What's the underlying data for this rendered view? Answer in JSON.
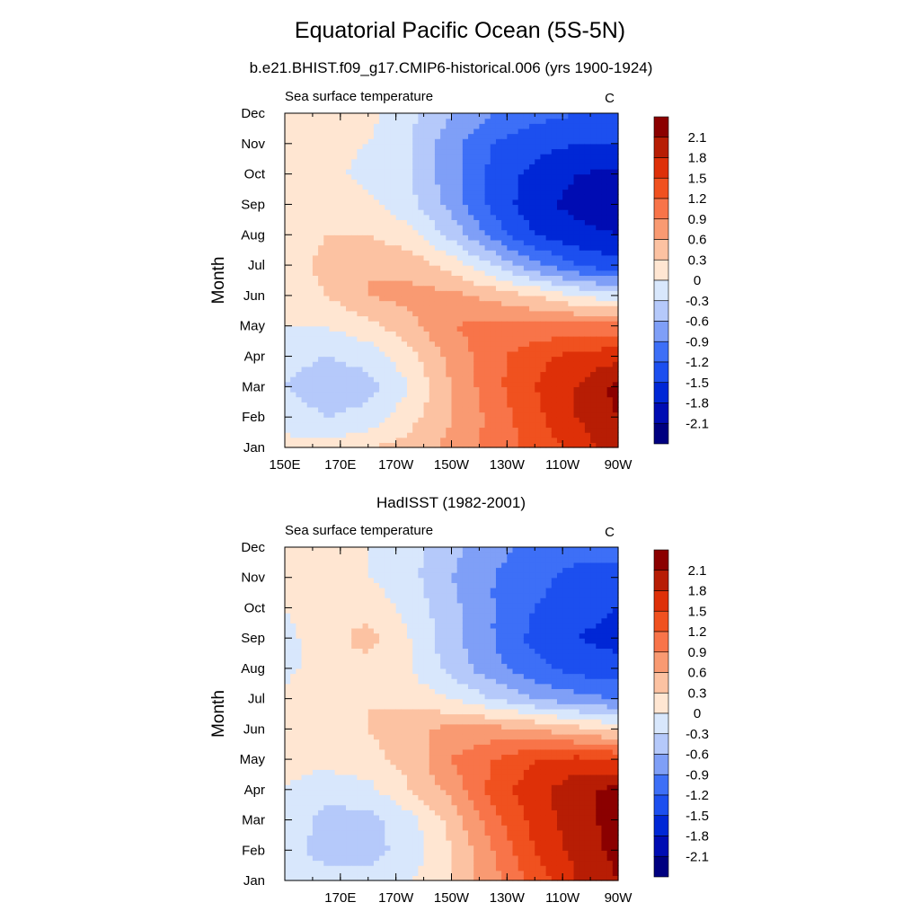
{
  "title": "Equatorial Pacific Ocean (5S-5N)",
  "chart_data": [
    {
      "type": "heatmap",
      "subtitle": "b.e21.BHIST.f09_g17.CMIP6-historical.006 (yrs 1900-1924)",
      "left_label": "Sea surface temperature",
      "units": "C",
      "ylabel": "Month",
      "xlabel": "",
      "x_ticks": [
        "150E",
        "170E",
        "170W",
        "150W",
        "130W",
        "110W",
        "90W"
      ],
      "x_tick_lon": [
        150,
        170,
        190,
        210,
        230,
        250,
        270
      ],
      "xlim": [
        150,
        270
      ],
      "y_ticks": [
        "Jan",
        "Feb",
        "Mar",
        "Apr",
        "May",
        "Jun",
        "Jul",
        "Aug",
        "Sep",
        "Oct",
        "Nov",
        "Dec"
      ],
      "colorbar_labels": [
        "2.1",
        "1.8",
        "1.5",
        "1.2",
        "0.9",
        "0.6",
        "0.3",
        "0",
        "-0.3",
        "-0.6",
        "-0.9",
        "-1.2",
        "-1.5",
        "-1.8",
        "-2.1"
      ],
      "contour_levels": [
        -2.1,
        -1.8,
        -1.5,
        -1.2,
        -0.9,
        -0.6,
        -0.3,
        0,
        0.3,
        0.6,
        0.9,
        1.2,
        1.5,
        1.8,
        2.1
      ],
      "lon": [
        150,
        165,
        180,
        195,
        210,
        225,
        240,
        255,
        270
      ],
      "values": [
        [
          0.1,
          0.1,
          0.3,
          0.4,
          0.7,
          1.0,
          1.3,
          1.6,
          2.0
        ],
        [
          -0.1,
          -0.3,
          -0.2,
          0.2,
          0.6,
          1.0,
          1.4,
          1.8,
          2.1
        ],
        [
          -0.3,
          -0.5,
          -0.4,
          0.0,
          0.6,
          1.1,
          1.5,
          1.8,
          2.2
        ],
        [
          -0.2,
          -0.3,
          -0.2,
          0.2,
          0.7,
          1.1,
          1.4,
          1.6,
          1.7
        ],
        [
          0.0,
          0.0,
          0.2,
          0.5,
          0.9,
          1.0,
          1.0,
          1.0,
          1.0
        ],
        [
          0.1,
          0.3,
          0.6,
          0.7,
          0.7,
          0.5,
          0.3,
          0.0,
          -0.2
        ],
        [
          0.1,
          0.4,
          0.6,
          0.5,
          0.2,
          -0.3,
          -0.8,
          -1.2,
          -1.4
        ],
        [
          0.1,
          0.3,
          0.3,
          0.1,
          -0.4,
          -1.0,
          -1.5,
          -1.7,
          -1.8
        ],
        [
          0.0,
          0.2,
          0.1,
          -0.2,
          -0.7,
          -1.3,
          -1.7,
          -1.9,
          -2.0
        ],
        [
          0.1,
          0.1,
          -0.1,
          -0.3,
          -0.8,
          -1.3,
          -1.6,
          -1.8,
          -1.9
        ],
        [
          0.1,
          0.1,
          0.0,
          -0.3,
          -0.8,
          -1.2,
          -1.4,
          -1.5,
          -1.5
        ],
        [
          0.1,
          0.1,
          0.1,
          -0.2,
          -0.6,
          -0.9,
          -1.1,
          -1.2,
          -1.2
        ]
      ]
    },
    {
      "type": "heatmap",
      "subtitle": "HadISST (1982-2001)",
      "left_label": "Sea surface temperature",
      "units": "C",
      "ylabel": "Month",
      "xlabel": "",
      "x_ticks": [
        "170E",
        "170W",
        "150W",
        "130W",
        "110W",
        "90W"
      ],
      "x_tick_lon": [
        170,
        190,
        210,
        230,
        250,
        270
      ],
      "xlim": [
        150,
        270
      ],
      "y_ticks": [
        "Jan",
        "Feb",
        "Mar",
        "Apr",
        "May",
        "Jun",
        "Jul",
        "Aug",
        "Sep",
        "Oct",
        "Nov",
        "Dec"
      ],
      "colorbar_labels": [
        "2.1",
        "1.8",
        "1.5",
        "1.2",
        "0.9",
        "0.6",
        "0.3",
        "0",
        "-0.3",
        "-0.6",
        "-0.9",
        "-1.2",
        "-1.5",
        "-1.8",
        "-2.1"
      ],
      "contour_levels": [
        -2.1,
        -1.8,
        -1.5,
        -1.2,
        -0.9,
        -0.6,
        -0.3,
        0,
        0.3,
        0.6,
        0.9,
        1.2,
        1.5,
        1.8,
        2.1
      ],
      "lon": [
        150,
        165,
        180,
        195,
        210,
        225,
        240,
        255,
        270
      ],
      "values": [
        [
          -0.1,
          -0.2,
          -0.2,
          0.0,
          0.3,
          0.8,
          1.3,
          1.8,
          2.1
        ],
        [
          -0.2,
          -0.4,
          -0.4,
          -0.2,
          0.3,
          0.9,
          1.5,
          1.9,
          2.2
        ],
        [
          -0.1,
          -0.4,
          -0.4,
          -0.1,
          0.4,
          1.1,
          1.6,
          2.0,
          2.2
        ],
        [
          0.0,
          -0.2,
          -0.1,
          0.3,
          0.7,
          1.3,
          1.7,
          2.0,
          2.2
        ],
        [
          0.1,
          0.1,
          0.2,
          0.4,
          0.9,
          1.2,
          1.5,
          1.6,
          1.5
        ],
        [
          0.1,
          0.2,
          0.3,
          0.5,
          0.7,
          0.7,
          0.6,
          0.4,
          0.2
        ],
        [
          0.1,
          0.2,
          0.3,
          0.2,
          0.0,
          -0.3,
          -0.6,
          -0.8,
          -0.9
        ],
        [
          -0.1,
          0.2,
          0.2,
          0.0,
          -0.4,
          -0.8,
          -1.1,
          -1.3,
          -1.4
        ],
        [
          -0.1,
          0.2,
          0.4,
          0.0,
          -0.5,
          -0.9,
          -1.3,
          -1.5,
          -1.6
        ],
        [
          0.0,
          0.2,
          0.2,
          -0.1,
          -0.5,
          -0.9,
          -1.2,
          -1.4,
          -1.5
        ],
        [
          0.1,
          0.1,
          0.0,
          -0.2,
          -0.6,
          -0.9,
          -1.1,
          -1.3,
          -1.3
        ],
        [
          0.1,
          0.1,
          0.0,
          -0.2,
          -0.5,
          -0.8,
          -1.0,
          -1.1,
          -1.1
        ]
      ]
    }
  ],
  "palette": [
    "#000080",
    "#000cb3",
    "#0027d6",
    "#1c4fef",
    "#3d6ff7",
    "#7f9ff7",
    "#b5c9fa",
    "#d8e7fc",
    "#ffe6d2",
    "#fcc2a2",
    "#f99a72",
    "#f87449",
    "#f0511f",
    "#de3008",
    "#b71d04",
    "#8b0000"
  ]
}
